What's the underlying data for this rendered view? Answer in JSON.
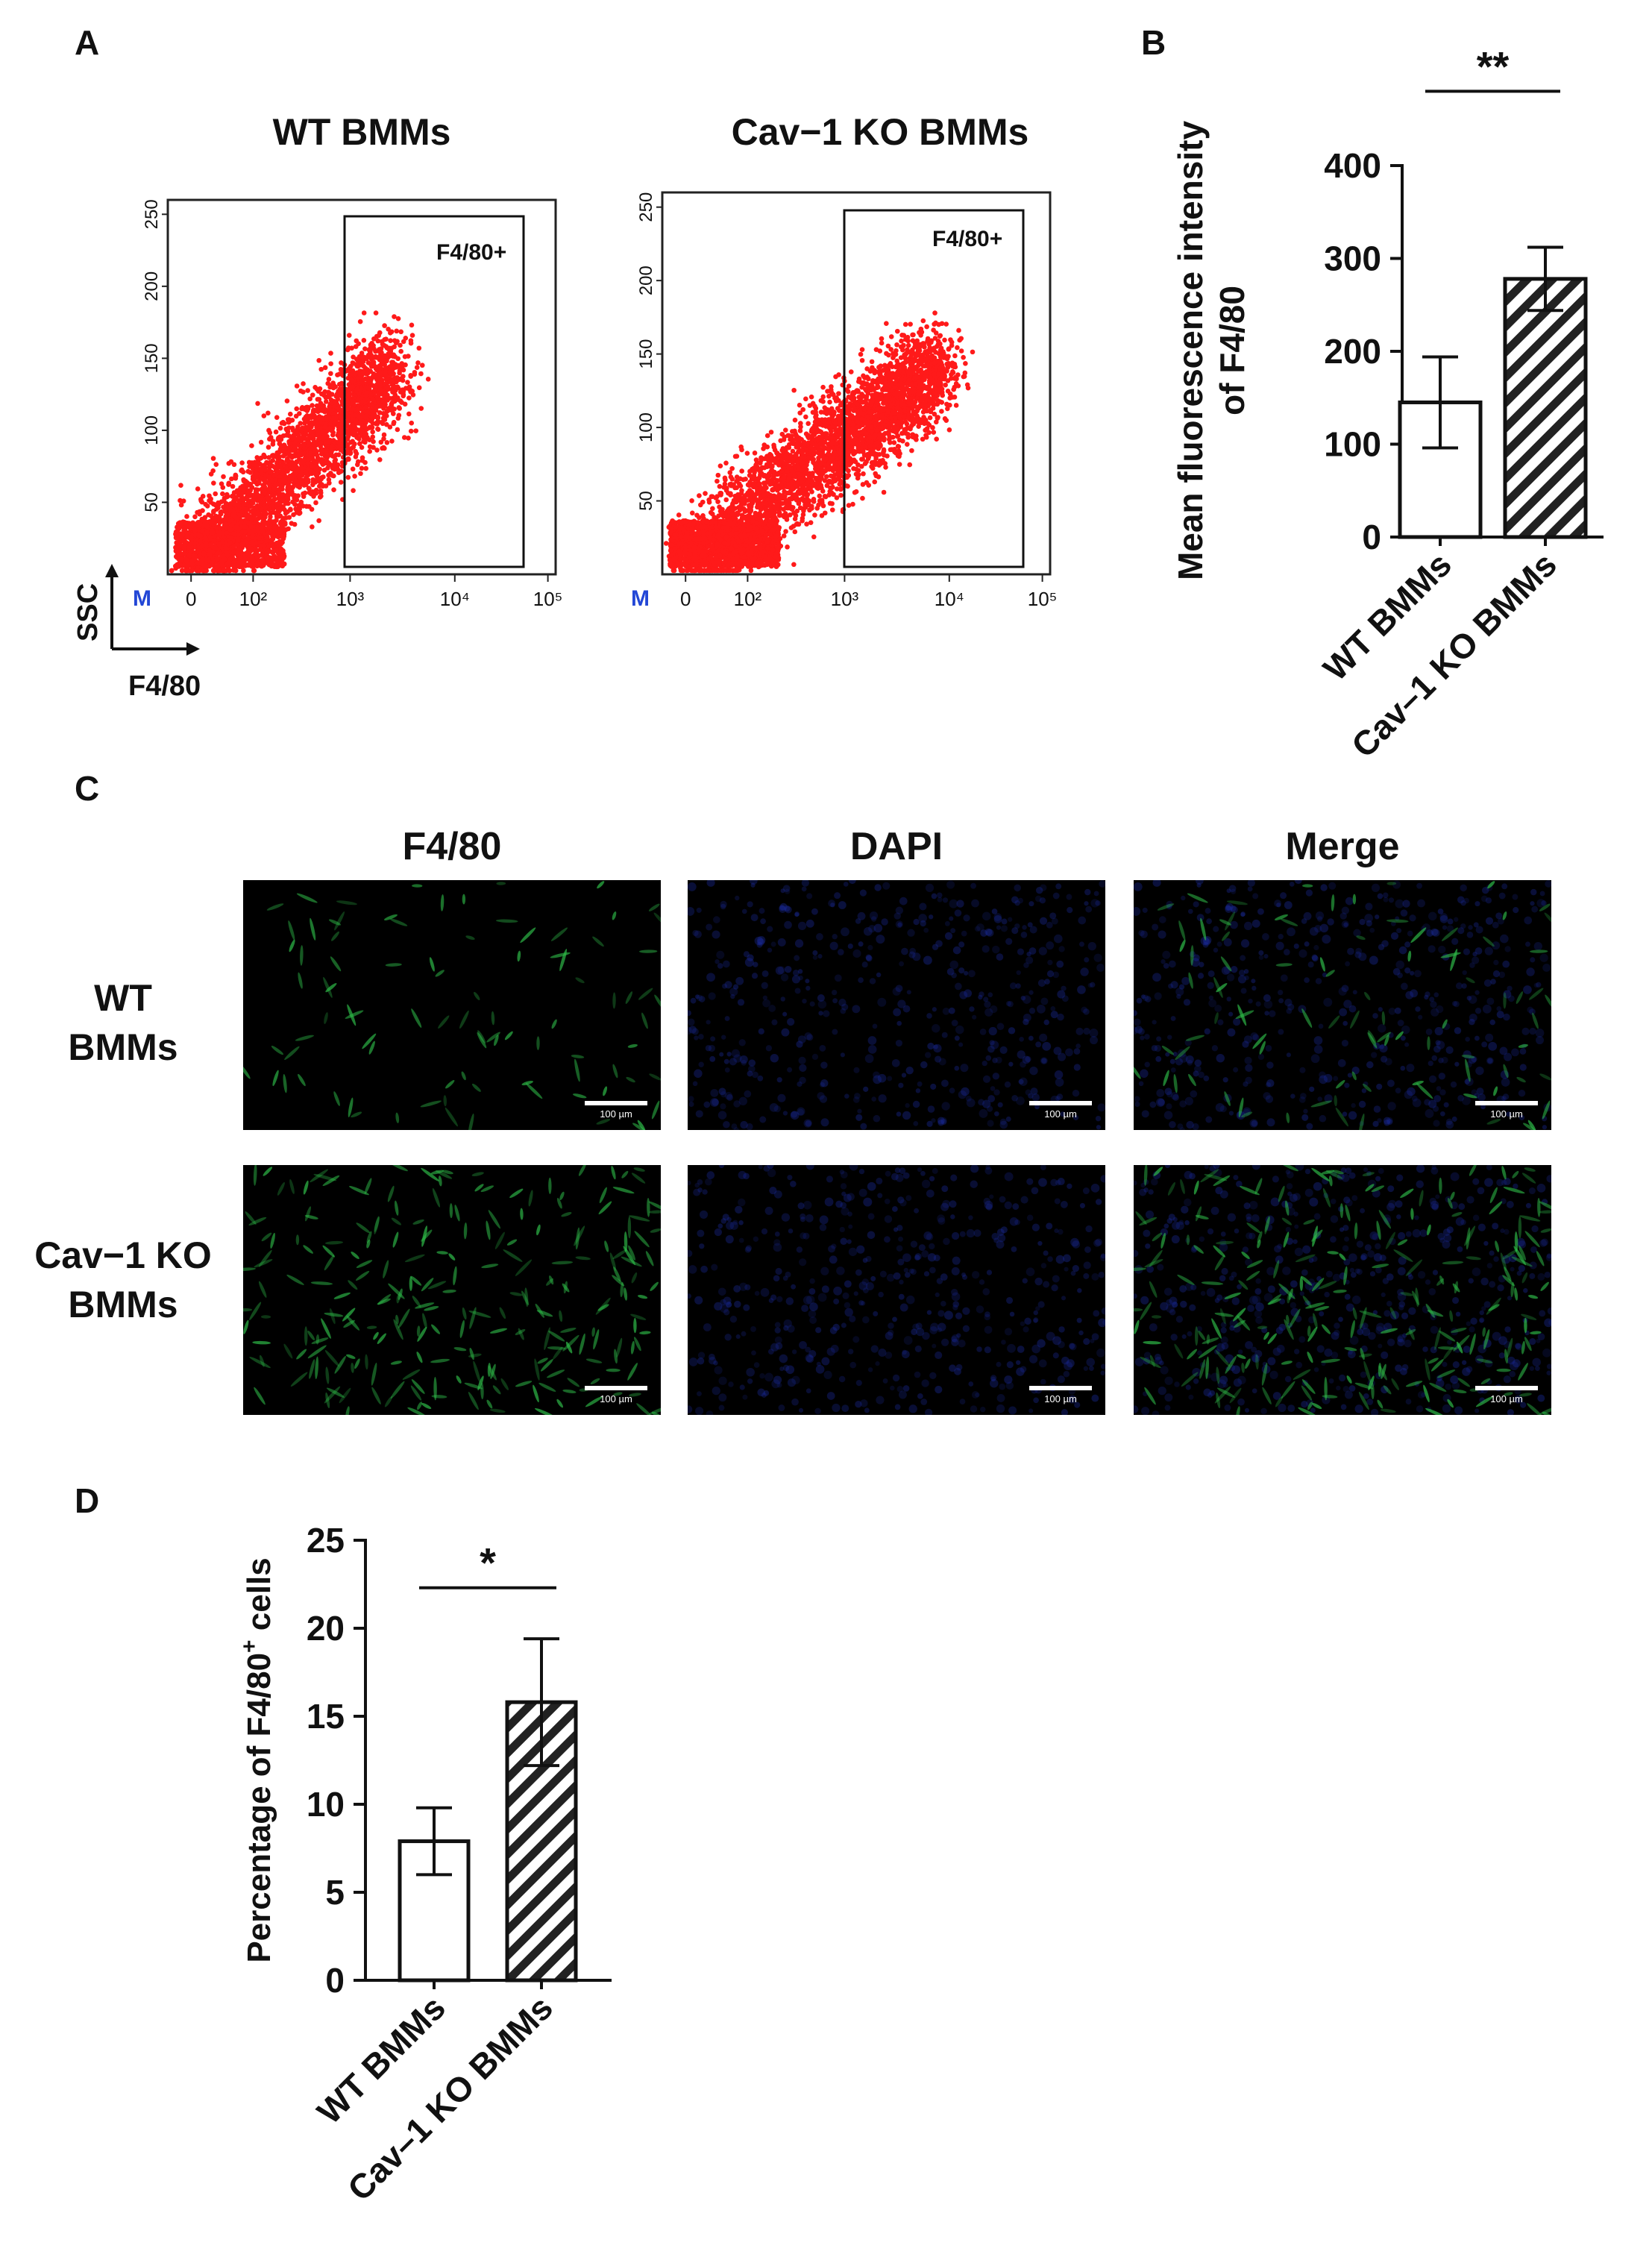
{
  "panels": {
    "a": "A",
    "b": "B",
    "c": "C",
    "d": "D"
  },
  "panel_a": {
    "plots": [
      {
        "title": "WT BMMs",
        "gate_label": "F4/80+",
        "density": 1.0
      },
      {
        "title": "Cav−1 KO BMMs",
        "gate_label": "F4/80+",
        "density": 1.25
      }
    ],
    "x_tick_labels": [
      "0",
      "10²",
      "10³",
      "10⁴",
      "10⁵"
    ],
    "y_tick_labels": [
      "50",
      "100",
      "150",
      "200",
      "250"
    ],
    "corner_marker": "M",
    "x_axis_label": "F4/80",
    "y_axis_label": "SSC",
    "point_color": "#ff1a1a"
  },
  "panel_c": {
    "columns": [
      {
        "label": "F4/80",
        "color": "#1fa84a"
      },
      {
        "label": "DAPI",
        "color": "#1b2d9c"
      },
      {
        "label": "Merge",
        "color": "#111111"
      }
    ],
    "rows": [
      {
        "label_line1": "WT",
        "label_line2": "BMMs",
        "cell_density": 0.35
      },
      {
        "label_line1": "Cav−1 KO",
        "label_line2": "BMMs",
        "cell_density": 1.0
      }
    ],
    "scale_bar_text": "100 µm"
  },
  "chart_data": [
    {
      "panel": "B",
      "type": "bar",
      "categories": [
        "WT BMMs",
        "Cav–1 KO BMMs"
      ],
      "values": [
        145,
        278
      ],
      "errors": [
        49,
        34
      ],
      "patterns": [
        "open",
        "hatched"
      ],
      "ylabel": "Mean fluorescence intensity of F4/80",
      "ylabel_line1": "Mean fluorescence intensity",
      "ylabel_line2": "of F4/80",
      "ylim": [
        0,
        400
      ],
      "yticks": [
        0,
        100,
        200,
        300,
        400
      ],
      "significance": "**"
    },
    {
      "panel": "D",
      "type": "bar",
      "categories": [
        "WT BMMs",
        "Cav–1 KO BMMs"
      ],
      "values": [
        7.9,
        15.8
      ],
      "errors": [
        1.9,
        3.6
      ],
      "patterns": [
        "open",
        "hatched"
      ],
      "ylabel": "Percentage of F4/80+ cells",
      "ylabel_prefix": "Percentage of F4/80",
      "ylabel_sup": "+",
      "ylabel_suffix": " cells",
      "ylim": [
        0,
        25
      ],
      "yticks": [
        0,
        5,
        10,
        15,
        20,
        25
      ],
      "significance": "*"
    }
  ]
}
